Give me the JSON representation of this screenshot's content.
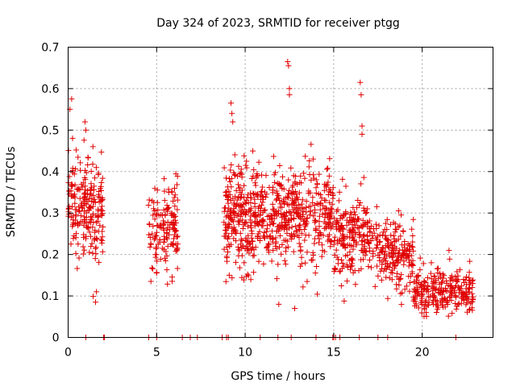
{
  "chart_data": {
    "type": "scatter",
    "title": "Day 324 of 2023, SRMTID for receiver ptgg",
    "xlabel": "GPS time / hours",
    "ylabel": "SRMTID / TECUs",
    "xlim": [
      0,
      24
    ],
    "ylim": [
      0,
      0.7
    ],
    "xticks": [
      0,
      5,
      10,
      15,
      20
    ],
    "yticks": [
      0,
      0.1,
      0.2,
      0.3,
      0.4,
      0.5,
      0.6,
      0.7
    ],
    "grid": true,
    "marker": "+",
    "color": "#e00000",
    "clusters": [
      {
        "x": [
          0.0,
          2.0
        ],
        "center": 0.31,
        "spread": 0.08,
        "n": 220
      },
      {
        "x": [
          4.5,
          6.2
        ],
        "center": 0.26,
        "spread": 0.06,
        "n": 150
      },
      {
        "x": [
          8.8,
          12.0
        ],
        "center": 0.29,
        "spread": 0.08,
        "n": 380
      },
      {
        "x": [
          12.0,
          15.0
        ],
        "center": 0.29,
        "spread": 0.07,
        "n": 300
      },
      {
        "x": [
          15.0,
          17.5
        ],
        "center": 0.25,
        "spread": 0.06,
        "n": 230
      },
      {
        "x": [
          17.5,
          19.5
        ],
        "center": 0.2,
        "spread": 0.05,
        "n": 180
      },
      {
        "x": [
          19.5,
          22.9
        ],
        "center": 0.11,
        "spread": 0.035,
        "n": 260
      }
    ],
    "spikes": [
      {
        "x": 0.2,
        "y": 0.575
      },
      {
        "x": 0.1,
        "y": 0.55
      },
      {
        "x": 0.25,
        "y": 0.48
      },
      {
        "x": 0.95,
        "y": 0.52
      },
      {
        "x": 1.0,
        "y": 0.5
      },
      {
        "x": 1.4,
        "y": 0.46
      },
      {
        "x": 1.6,
        "y": 0.11
      },
      {
        "x": 1.55,
        "y": 0.085
      },
      {
        "x": 9.2,
        "y": 0.565
      },
      {
        "x": 9.25,
        "y": 0.54
      },
      {
        "x": 9.3,
        "y": 0.52
      },
      {
        "x": 12.4,
        "y": 0.665
      },
      {
        "x": 12.45,
        "y": 0.655
      },
      {
        "x": 12.5,
        "y": 0.6
      },
      {
        "x": 12.5,
        "y": 0.585
      },
      {
        "x": 11.9,
        "y": 0.08
      },
      {
        "x": 12.8,
        "y": 0.07
      },
      {
        "x": 16.5,
        "y": 0.615
      },
      {
        "x": 16.55,
        "y": 0.585
      },
      {
        "x": 16.6,
        "y": 0.51
      },
      {
        "x": 16.6,
        "y": 0.49
      },
      {
        "x": 9.1,
        "y": 0.15
      },
      {
        "x": 13.5,
        "y": 0.135
      }
    ],
    "zero_points": [
      1.0,
      2.0,
      2.05,
      4.55,
      5.0,
      6.45,
      6.9,
      7.3,
      8.7,
      8.95,
      9.05,
      10.85,
      11.85,
      12.6,
      14.0,
      14.95,
      15.0,
      15.1,
      15.35,
      16.45,
      17.5,
      18.05,
      21.9
    ]
  }
}
